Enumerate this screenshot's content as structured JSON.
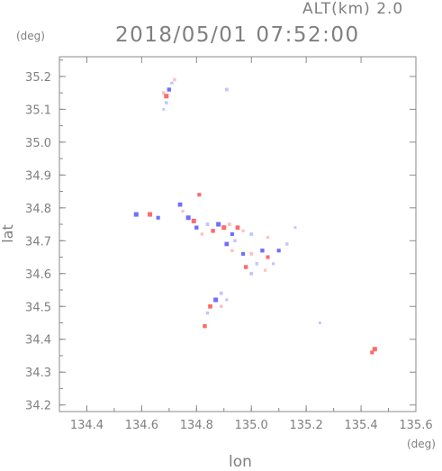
{
  "header": {
    "alt_label": "ALT(km) 2.0",
    "datetime": "2018/05/01 07:52:00",
    "y_unit": "(deg)",
    "x_unit": "(deg)"
  },
  "chart_data": {
    "type": "scatter",
    "title": "2018/05/01 07:52:00",
    "subtitle": "ALT(km) 2.0",
    "xlabel": "lon",
    "ylabel": "lat",
    "xlim": [
      134.3,
      135.6
    ],
    "ylim": [
      34.18,
      35.26
    ],
    "xticks": [
      134.4,
      134.6,
      134.8,
      135.0,
      135.2,
      135.4,
      135.6
    ],
    "xtick_labels": [
      "134.4",
      "134.6",
      "134.8",
      "135.0",
      "135.2",
      "135.4",
      "135.6"
    ],
    "yticks": [
      34.2,
      34.3,
      34.4,
      34.5,
      34.6,
      34.7,
      34.8,
      34.9,
      35.0,
      35.1,
      35.2
    ],
    "ytick_labels": [
      "34.2",
      "34.3",
      "34.4",
      "34.5",
      "34.6",
      "34.7",
      "34.8",
      "34.9",
      "35.0",
      "35.1",
      "35.2"
    ],
    "grid": false,
    "colors": {
      "positive": "#ff6a6a",
      "negative": "#6f6fff",
      "light_positive": "#ffc0c0",
      "light_negative": "#c4c4ff"
    },
    "points": [
      {
        "x": 134.68,
        "y": 35.15,
        "v": 0.6
      },
      {
        "x": 134.69,
        "y": 35.14,
        "v": 1
      },
      {
        "x": 134.7,
        "y": 35.16,
        "v": -0.8
      },
      {
        "x": 134.69,
        "y": 35.12,
        "v": -0.5
      },
      {
        "x": 134.71,
        "y": 35.18,
        "v": -0.4
      },
      {
        "x": 134.72,
        "y": 35.19,
        "v": 0.5
      },
      {
        "x": 134.68,
        "y": 35.1,
        "v": -0.3
      },
      {
        "x": 134.91,
        "y": 35.16,
        "v": -0.6
      },
      {
        "x": 134.58,
        "y": 34.78,
        "v": -1
      },
      {
        "x": 134.63,
        "y": 34.78,
        "v": 1
      },
      {
        "x": 134.66,
        "y": 34.77,
        "v": -0.7
      },
      {
        "x": 134.74,
        "y": 34.81,
        "v": -0.9
      },
      {
        "x": 134.75,
        "y": 34.79,
        "v": 0.4
      },
      {
        "x": 134.77,
        "y": 34.77,
        "v": -1
      },
      {
        "x": 134.79,
        "y": 34.76,
        "v": 1
      },
      {
        "x": 134.81,
        "y": 34.84,
        "v": 0.7
      },
      {
        "x": 134.8,
        "y": 34.74,
        "v": -0.8
      },
      {
        "x": 134.82,
        "y": 34.72,
        "v": 0.5
      },
      {
        "x": 134.84,
        "y": 34.75,
        "v": -0.6
      },
      {
        "x": 134.86,
        "y": 34.73,
        "v": 0.8
      },
      {
        "x": 134.88,
        "y": 34.75,
        "v": -1
      },
      {
        "x": 134.9,
        "y": 34.74,
        "v": 1
      },
      {
        "x": 134.92,
        "y": 34.75,
        "v": 0.6
      },
      {
        "x": 134.93,
        "y": 34.72,
        "v": -0.7
      },
      {
        "x": 134.95,
        "y": 34.74,
        "v": 0.9
      },
      {
        "x": 134.94,
        "y": 34.7,
        "v": -0.5
      },
      {
        "x": 134.97,
        "y": 34.73,
        "v": 0.4
      },
      {
        "x": 135.0,
        "y": 34.72,
        "v": -0.6
      },
      {
        "x": 134.91,
        "y": 34.69,
        "v": -0.9
      },
      {
        "x": 134.93,
        "y": 34.67,
        "v": 0.5
      },
      {
        "x": 134.97,
        "y": 34.66,
        "v": -0.7
      },
      {
        "x": 135.0,
        "y": 34.66,
        "v": 0.6
      },
      {
        "x": 135.04,
        "y": 34.67,
        "v": -0.8
      },
      {
        "x": 135.06,
        "y": 34.65,
        "v": 0.7
      },
      {
        "x": 135.02,
        "y": 34.63,
        "v": -0.5
      },
      {
        "x": 134.98,
        "y": 34.62,
        "v": 0.8
      },
      {
        "x": 135.0,
        "y": 34.6,
        "v": -0.6
      },
      {
        "x": 135.05,
        "y": 34.61,
        "v": 0.4
      },
      {
        "x": 135.08,
        "y": 34.63,
        "v": -0.4
      },
      {
        "x": 135.1,
        "y": 34.67,
        "v": -0.7
      },
      {
        "x": 135.13,
        "y": 34.69,
        "v": -0.5
      },
      {
        "x": 135.16,
        "y": 34.74,
        "v": -0.3
      },
      {
        "x": 135.06,
        "y": 34.71,
        "v": 0.4
      },
      {
        "x": 134.89,
        "y": 34.54,
        "v": -0.6
      },
      {
        "x": 134.87,
        "y": 34.52,
        "v": -1
      },
      {
        "x": 134.85,
        "y": 34.5,
        "v": 0.9
      },
      {
        "x": 134.89,
        "y": 34.5,
        "v": 0.5
      },
      {
        "x": 134.91,
        "y": 34.52,
        "v": -0.4
      },
      {
        "x": 134.84,
        "y": 34.48,
        "v": -0.5
      },
      {
        "x": 134.83,
        "y": 34.44,
        "v": 0.8
      },
      {
        "x": 135.25,
        "y": 34.45,
        "v": -0.3
      },
      {
        "x": 135.45,
        "y": 34.37,
        "v": 1
      },
      {
        "x": 135.44,
        "y": 34.36,
        "v": 0.7
      }
    ]
  }
}
